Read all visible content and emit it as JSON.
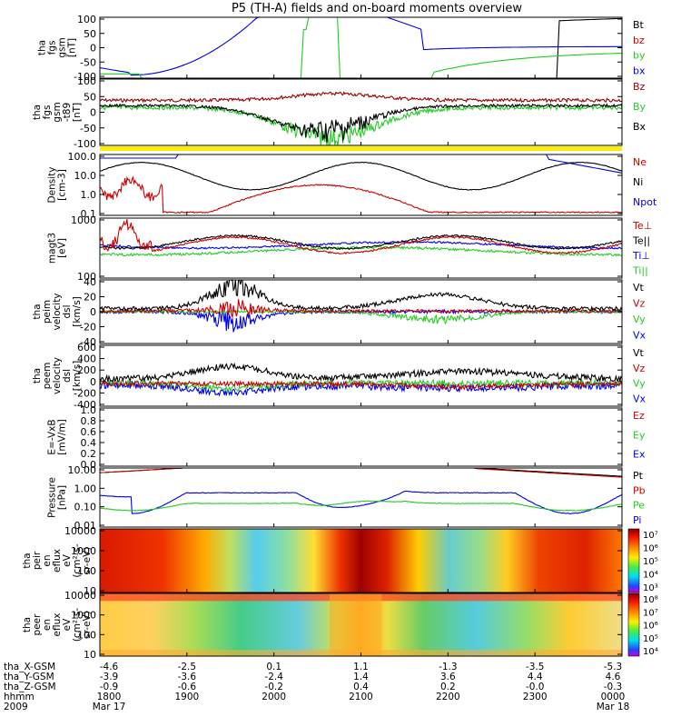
{
  "title": "P5 (TH-A) fields and on-board moments overview",
  "chart_data": {
    "type": "line",
    "title": "P5 (TH-A) fields and on-board moments overview",
    "panels": [
      {
        "id": "fgs",
        "ylabel": [
          "tha",
          "fgs",
          "gsm",
          "[nT]"
        ],
        "yticks": [
          "100",
          "50",
          "0",
          "-50",
          "-100"
        ],
        "legend": [
          {
            "name": "Bt",
            "color": "#000000"
          },
          {
            "name": "bz",
            "color": "#cc0000"
          },
          {
            "name": "by",
            "color": "#22cc22"
          },
          {
            "name": "bx",
            "color": "#0000ee"
          }
        ]
      },
      {
        "id": "fgs-t89",
        "ylabel": [
          "tha",
          "fgs",
          "gsm",
          "-t89",
          "[nT]"
        ],
        "yticks": [
          "100",
          "50",
          "0",
          "-50",
          "-100"
        ],
        "legend": [
          {
            "name": "Bz",
            "color": "#990000"
          },
          {
            "name": "By",
            "color": "#22cc22"
          },
          {
            "name": "Bx",
            "color": "#000000"
          }
        ]
      },
      {
        "id": "mode-bar",
        "bar_color": "#ffee00"
      },
      {
        "id": "density",
        "ylabel": [
          "Density",
          "[cm-3]"
        ],
        "yticks": [
          "100.0",
          "10.0",
          "1.0",
          "0.1"
        ],
        "log": true,
        "legend": [
          {
            "name": "Ne",
            "color": "#cc0000"
          },
          {
            "name": "Ni",
            "color": "#000000"
          },
          {
            "name": "Npot",
            "color": "#0000ee"
          }
        ]
      },
      {
        "id": "temperature",
        "ylabel": [
          "magt3",
          "[eV]"
        ],
        "yticks": [
          "1000",
          "100"
        ],
        "log": true,
        "legend": [
          {
            "name": "Te⊥",
            "color": "#cc0000"
          },
          {
            "name": "Te||",
            "color": "#000000"
          },
          {
            "name": "Ti⊥",
            "color": "#0000ee"
          },
          {
            "name": "Ti||",
            "color": "#22cc22"
          }
        ]
      },
      {
        "id": "peim-velocity",
        "ylabel": [
          "tha",
          "peim",
          "velocity",
          "dsl",
          "[km/s]"
        ],
        "yticks": [
          "40",
          "20",
          "0",
          "-20",
          "-40"
        ],
        "legend": [
          {
            "name": "Vt",
            "color": "#000000"
          },
          {
            "name": "Vz",
            "color": "#cc0000"
          },
          {
            "name": "Vy",
            "color": "#22cc22"
          },
          {
            "name": "Vx",
            "color": "#0000ee"
          }
        ]
      },
      {
        "id": "peem-velocity",
        "ylabel": [
          "tha",
          "peem",
          "velocity",
          "dsl",
          "[km/s]"
        ],
        "yticks": [
          "600",
          "400",
          "200",
          "0",
          "-200",
          "-400"
        ],
        "legend": [
          {
            "name": "Vt",
            "color": "#000000"
          },
          {
            "name": "Vz",
            "color": "#cc0000"
          },
          {
            "name": "Vy",
            "color": "#22cc22"
          },
          {
            "name": "Vx",
            "color": "#0000ee"
          }
        ]
      },
      {
        "id": "efield",
        "ylabel": [
          "E=-VxB",
          "[mV/m]"
        ],
        "yticks": [
          "1.0",
          "0.8",
          "0.6",
          "0.4",
          "0.2",
          "0.0"
        ],
        "legend": [
          {
            "name": "Ez",
            "color": "#cc0000"
          },
          {
            "name": "Ey",
            "color": "#22cc22"
          },
          {
            "name": "Ex",
            "color": "#0000ee"
          }
        ]
      },
      {
        "id": "pressure",
        "ylabel": [
          "Pressure",
          "[nPa]"
        ],
        "yticks": [
          "10.00",
          "1.00",
          "0.10",
          "0.01"
        ],
        "log": true,
        "legend": [
          {
            "name": "Pt",
            "color": "#000000"
          },
          {
            "name": "Pb",
            "color": "#cc0000"
          },
          {
            "name": "Pe",
            "color": "#22cc22"
          },
          {
            "name": "Pi",
            "color": "#0000ee"
          }
        ]
      },
      {
        "id": "ion-spectrogram",
        "ylabel": [
          "tha",
          "peir",
          "en",
          "eflux",
          "eV",
          "(cm²-s-",
          "sr-eV)"
        ],
        "yticks": [
          "10000",
          "1000",
          "100",
          "10"
        ],
        "colorbar_labels": [
          "10⁷",
          "10⁶",
          "10⁵",
          "10⁴",
          "10³"
        ]
      },
      {
        "id": "electron-spectrogram",
        "ylabel": [
          "tha",
          "peer",
          "en",
          "eflux",
          "eV",
          "(cm²-s-",
          "sr-eV)"
        ],
        "yticks": [
          "10000",
          "1000",
          "100",
          "10"
        ],
        "colorbar_labels": [
          "10⁸",
          "10⁷",
          "10⁶",
          "10⁵",
          "10⁴"
        ]
      }
    ],
    "x_axis": {
      "row_labels": [
        "tha_X-GSM",
        "tha_Y-GSM",
        "tha_Z-GSM",
        "hhmm",
        "2009"
      ],
      "ticks": [
        {
          "hhmm": "1800",
          "x": "-4.6",
          "y": "-3.9",
          "z": "-0.9",
          "date": "Mar 17"
        },
        {
          "hhmm": "1900",
          "x": "-2.5",
          "y": "-3.6",
          "z": "-0.6",
          "date": ""
        },
        {
          "hhmm": "2000",
          "x": "0.1",
          "y": "-2.4",
          "z": "-0.2",
          "date": ""
        },
        {
          "hhmm": "2100",
          "x": "1.1",
          "y": "1.4",
          "z": "0.4",
          "date": ""
        },
        {
          "hhmm": "2200",
          "x": "-1.3",
          "y": "3.6",
          "z": "0.2",
          "date": ""
        },
        {
          "hhmm": "2300",
          "x": "-3.5",
          "y": "4.4",
          "z": "-0.0",
          "date": ""
        },
        {
          "hhmm": "0000",
          "x": "-5.3",
          "y": "4.6",
          "z": "-0.3",
          "date": "Mar 18"
        }
      ]
    }
  }
}
